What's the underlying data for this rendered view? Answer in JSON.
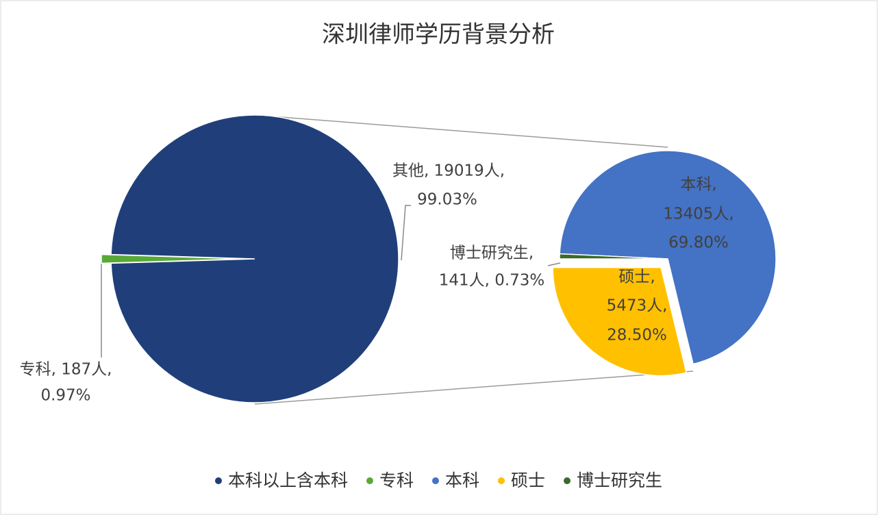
{
  "chart_data": {
    "type": "pie-of-pie",
    "title": "深圳律师学历背景分析",
    "main": {
      "values": [
        19019,
        187
      ],
      "colors": [
        "#203f7a",
        "#5aa83a"
      ],
      "data_labels": [
        [
          "其他, 19019人,",
          "99.03%"
        ],
        [
          "专科, 187人,",
          "0.97%"
        ]
      ]
    },
    "secondary": {
      "values": [
        13405,
        5473,
        141
      ],
      "colors": [
        "#4472c4",
        "#ffc000",
        "#3a6b28"
      ],
      "data_labels": [
        [
          "本科,",
          "13405人,",
          "69.80%"
        ],
        [
          "硕士,",
          "5473人,",
          "28.50%"
        ],
        [
          "博士研究生,",
          "141人, 0.73%"
        ]
      ]
    },
    "legend": [
      {
        "name": "本科以上含本科",
        "color": "#203f7a"
      },
      {
        "name": "专科",
        "color": "#5aa83a"
      },
      {
        "name": "本科",
        "color": "#4472c4"
      },
      {
        "name": "硕士",
        "color": "#ffc000"
      },
      {
        "name": "博士研究生",
        "color": "#3a6b28"
      }
    ]
  }
}
